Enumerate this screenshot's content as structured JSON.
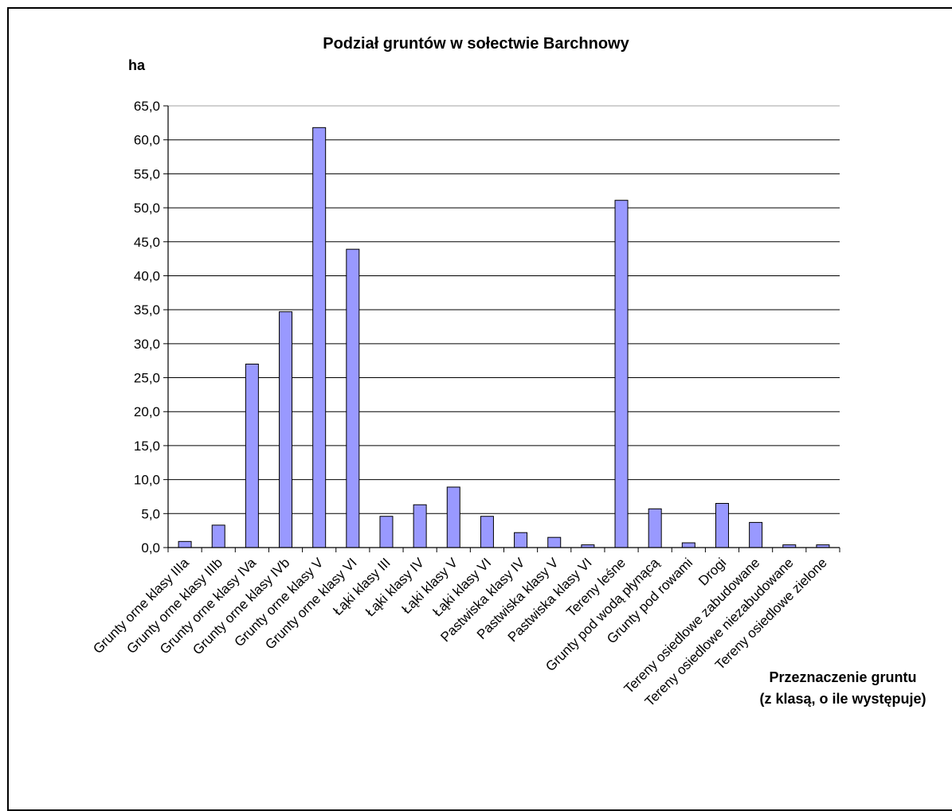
{
  "chart_data": {
    "type": "bar",
    "title": "Podział gruntów w sołectwie Barchnowy",
    "ylabel": "ha",
    "xlabel_lines": [
      "Przeznaczenie gruntu",
      "(z klasą, o ile występuje)"
    ],
    "ylim": [
      0,
      65
    ],
    "ytick_step": 5,
    "ytick_labels": [
      "0,0",
      "5,0",
      "10,0",
      "15,0",
      "20,0",
      "25,0",
      "30,0",
      "35,0",
      "40,0",
      "45,0",
      "50,0",
      "55,0",
      "60,0",
      "65,0"
    ],
    "grid": true,
    "legend": "none",
    "bar_color": "#9999ff",
    "categories": [
      "Grunty orne klasy IIIa",
      "Grunty orne klasy IIIb",
      "Grunty orne klasy IVa",
      "Grunty orne klasy IVb",
      "Grunty orne klasy V",
      "Grunty orne klasy VI",
      "Łąki klasy III",
      "Łąki klasy IV",
      "Łąki klasy V",
      "Łąki klasy VI",
      "Pastwiska klasy IV",
      "Pastwiska klasy V",
      "Pastwiska klasy VI",
      "Tereny leśne",
      "Grunty pod wodą płynącą",
      "Grunty pod rowami",
      "Drogi",
      "Tereny osiedlowe zabudowane",
      "Tereny osiedlowe niezabudowane",
      "Tereny osiedlowe zielone"
    ],
    "values": [
      0.9,
      3.3,
      27.0,
      34.7,
      61.8,
      43.9,
      4.6,
      6.3,
      8.9,
      4.6,
      2.2,
      1.5,
      0.4,
      51.1,
      5.7,
      0.7,
      6.5,
      3.7,
      0.4,
      0.4
    ]
  }
}
